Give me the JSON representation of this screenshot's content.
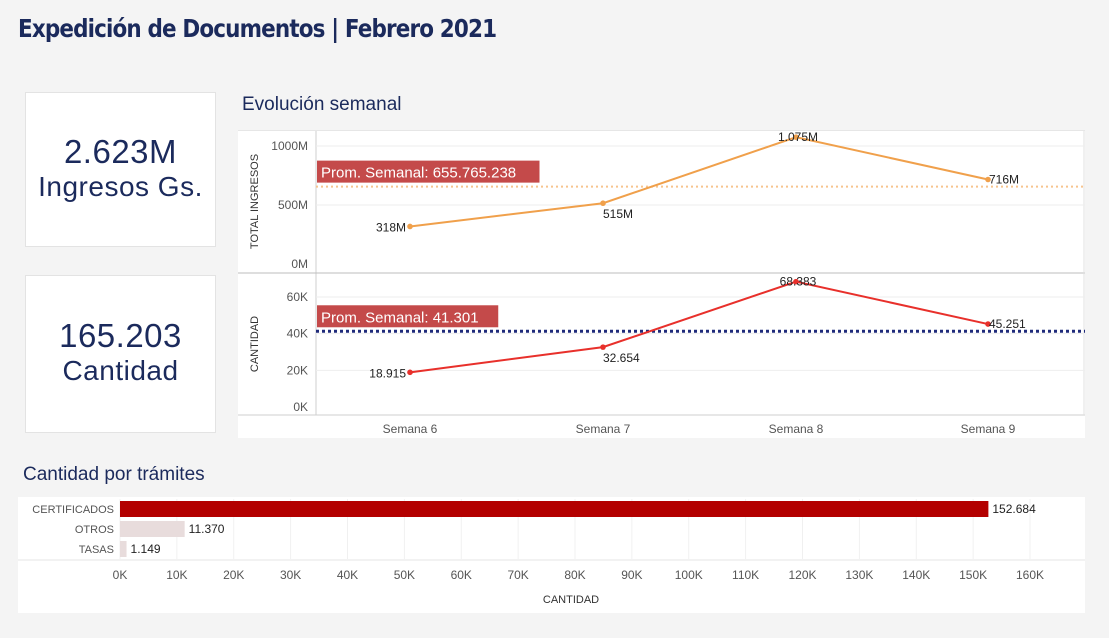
{
  "title": "Expedición de Documentos | Febrero 2021",
  "kpis": {
    "ingresos": {
      "value": "2.623M",
      "label": "Ingresos Gs."
    },
    "cantidad": {
      "value": "165.203",
      "label": "Cantidad"
    }
  },
  "weekly": {
    "title": "Evolución semanal",
    "x_labels": [
      "Semana 6",
      "Semana 7",
      "Semana 8",
      "Semana 9"
    ]
  },
  "tramites": {
    "title": "Cantidad por trámites"
  },
  "colors": {
    "title": "#1b2a5c",
    "ingresos_line": "#f0a04b",
    "cantidad_line": "#e8302b",
    "avg_label_bg": "#c44a4a",
    "avg_line_cantidad": "#1f2a7a",
    "bar_main": "#b30000",
    "bar_other": "#e8dcdc"
  },
  "chart_data": [
    {
      "type": "line",
      "categories": [
        "Semana 6",
        "Semana 7",
        "Semana 8",
        "Semana 9"
      ],
      "series": [
        {
          "values": [
            318,
            515,
            1075,
            716
          ],
          "labels": [
            "318M",
            "515M",
            "1.075M",
            "716M"
          ]
        }
      ],
      "ylabel": "TOTAL INGRESOS",
      "ylim": [
        0,
        1100
      ],
      "yticks": [
        0,
        500,
        1000
      ],
      "ytick_labels": [
        "0M",
        "500M",
        "1000M"
      ],
      "reference_line": {
        "value": 655.765238,
        "label": "Prom. Semanal: 655.765.238",
        "style": "dotted"
      },
      "grid": true
    },
    {
      "type": "line",
      "categories": [
        "Semana 6",
        "Semana 7",
        "Semana 8",
        "Semana 9"
      ],
      "series": [
        {
          "values": [
            18915,
            32654,
            68383,
            45251
          ],
          "labels": [
            "18.915",
            "32.654",
            "68.383",
            "45.251"
          ]
        }
      ],
      "ylabel": "CANTIDAD",
      "ylim": [
        0,
        72000
      ],
      "yticks": [
        0,
        20000,
        40000,
        60000
      ],
      "ytick_labels": [
        "0K",
        "20K",
        "40K",
        "60K"
      ],
      "reference_line": {
        "value": 41301,
        "label": "Prom. Semanal: 41.301",
        "style": "dotted"
      },
      "grid": true
    },
    {
      "type": "bar",
      "orientation": "horizontal",
      "categories": [
        "CERTIFICADOS",
        "OTROS",
        "TASAS"
      ],
      "values": [
        152684,
        11370,
        1149
      ],
      "value_labels": [
        "152.684",
        "11.370",
        "1.149"
      ],
      "xlabel": "CANTIDAD",
      "xlim": [
        0,
        160000
      ],
      "xticks": [
        0,
        10000,
        20000,
        30000,
        40000,
        50000,
        60000,
        70000,
        80000,
        90000,
        100000,
        110000,
        120000,
        130000,
        140000,
        150000,
        160000
      ],
      "xtick_labels": [
        "0K",
        "10K",
        "20K",
        "30K",
        "40K",
        "50K",
        "60K",
        "70K",
        "80K",
        "90K",
        "100K",
        "110K",
        "120K",
        "130K",
        "140K",
        "150K",
        "160K"
      ],
      "grid": true
    }
  ]
}
